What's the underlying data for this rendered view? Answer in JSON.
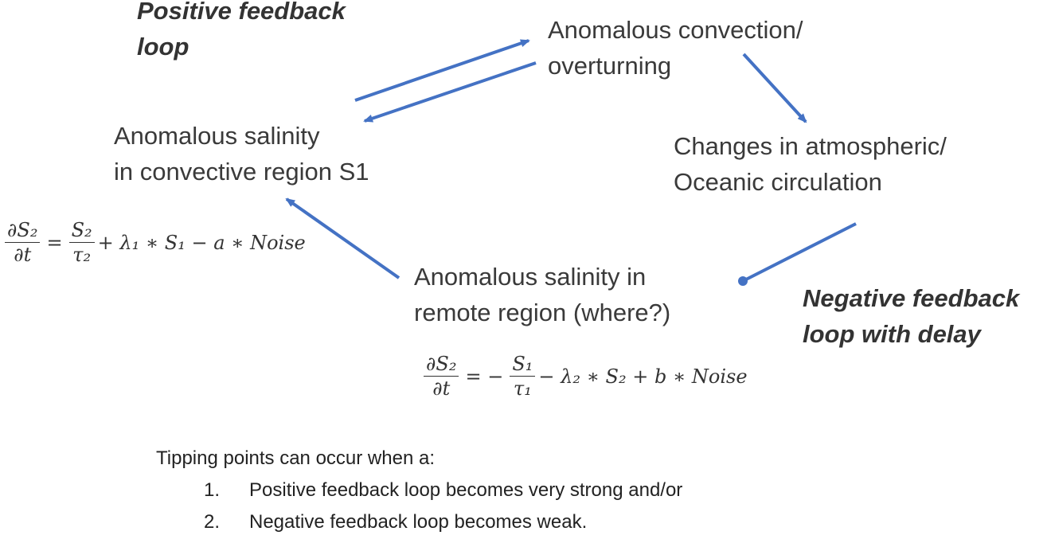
{
  "positive_loop_label": [
    "Positive feedback",
    "loop"
  ],
  "negative_loop_label": [
    "Negative feedback",
    "loop with delay"
  ],
  "nodes": {
    "convection": [
      "Anomalous convection/",
      "overturning"
    ],
    "salinity_s1": [
      "Anomalous salinity",
      "in convective region S1"
    ],
    "circulation": [
      "Changes in atmospheric/",
      "Oceanic circulation"
    ],
    "remote": [
      "Anomalous salinity in",
      "remote region (where?)"
    ]
  },
  "equation_left": {
    "lhs_num": "∂S₂",
    "lhs_den": "∂t",
    "eq": "=",
    "frac_num": "S₂",
    "frac_den": "τ₂",
    "rest": "+ λ₁ ∗ S₁ − a ∗ Noise"
  },
  "equation_right": {
    "lhs_num": "∂S₂",
    "lhs_den": "∂t",
    "eq": "= −",
    "frac_num": "S₁",
    "frac_den": "τ₁",
    "rest": "− λ₂ ∗ S₂ +  b ∗ Noise"
  },
  "tipping": {
    "intro": "Tipping points can occur when a:",
    "items": [
      {
        "num": "1.",
        "text": "Positive feedback loop becomes very strong and/or"
      },
      {
        "num": "2.",
        "text": "Negative feedback loop becomes weak."
      }
    ]
  },
  "colors": {
    "arrow": "#4472C4"
  }
}
